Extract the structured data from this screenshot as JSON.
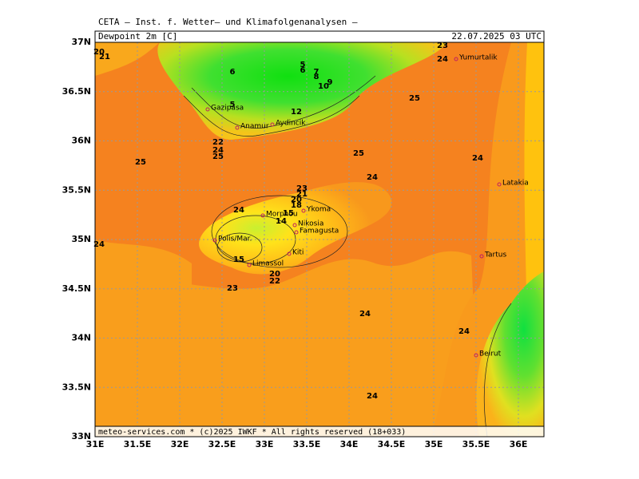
{
  "header": {
    "title": "CETA – Inst. f. Wetter– und Klimafolgenanalysen –",
    "field": "Dewpoint 2m [C]",
    "date": "22.07.2025 03 UTC"
  },
  "footer": "meteo-services.com * (c)2025 IWKF * All rights reserved (18+033)",
  "lat_ticks": [
    "37N",
    "36.5N",
    "36N",
    "35.5N",
    "35N",
    "34.5N",
    "34N",
    "33.5N",
    "33N"
  ],
  "lon_ticks": [
    "31E",
    "31.5E",
    "32E",
    "32.5E",
    "33E",
    "33.5E",
    "34E",
    "34.5E",
    "35E",
    "35.5E",
    "36E"
  ],
  "places": [
    "Yumurtalik",
    "Gazipasa",
    "Anamur",
    "Aydincik",
    "Latakia",
    "Ykoma",
    "Morphou",
    "Nikosia",
    "Famagusta",
    "Polis/Mar.",
    "Kiti",
    "Limassol",
    "Tartus",
    "Beirut"
  ],
  "contour_labels": [
    "20",
    "21",
    "6",
    "5",
    "6",
    "7",
    "8",
    "9",
    "10",
    "12",
    "5",
    "25",
    "23",
    "24",
    "25",
    "25",
    "25",
    "24",
    "22",
    "24",
    "24",
    "23",
    "21",
    "20",
    "18",
    "24",
    "15",
    "14",
    "24",
    "15",
    "20",
    "22",
    "23",
    "24",
    "24",
    "24"
  ]
}
